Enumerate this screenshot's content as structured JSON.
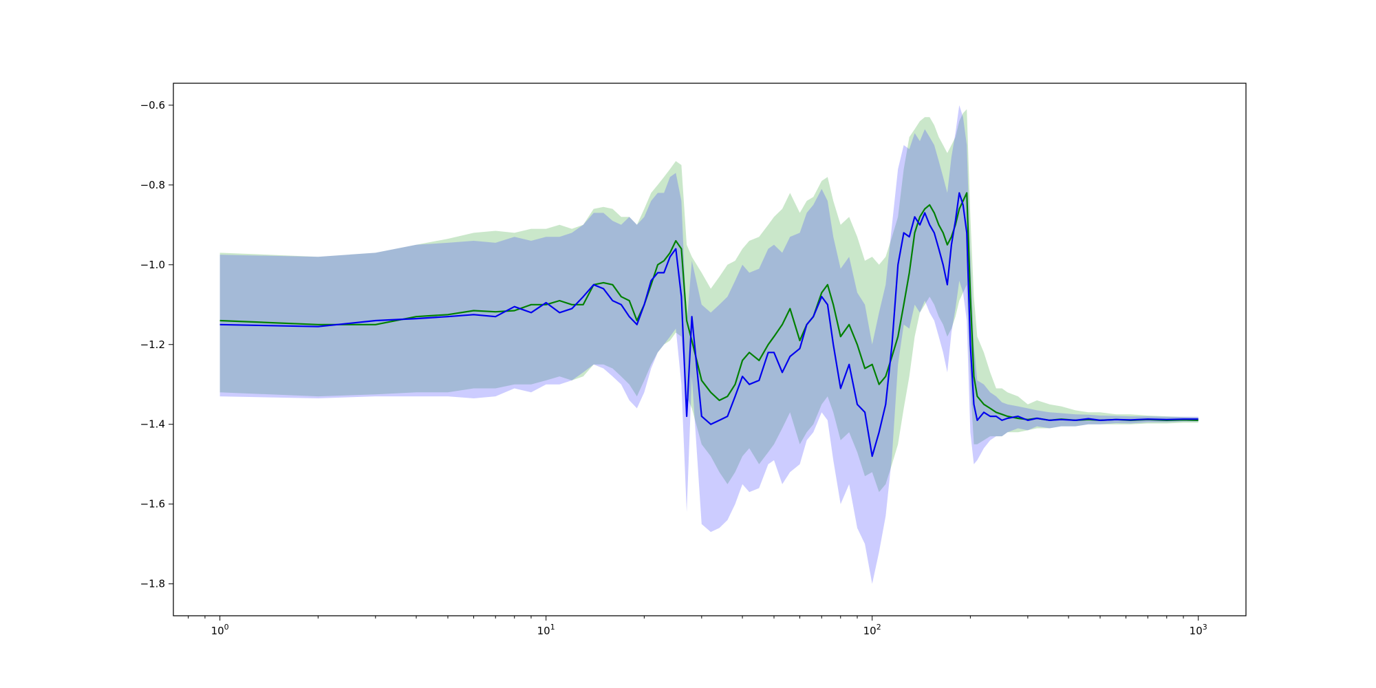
{
  "chart_data": {
    "type": "line",
    "title": "",
    "xlabel": "",
    "ylabel": "",
    "xscale": "log",
    "xlim": [
      0.72,
      1400
    ],
    "ylim": [
      -1.88,
      -0.545
    ],
    "grid": false,
    "legend": "none",
    "x_ticks": [
      {
        "value": 1,
        "base": "10",
        "exp": "0"
      },
      {
        "value": 10,
        "base": "10",
        "exp": "1"
      },
      {
        "value": 100,
        "base": "10",
        "exp": "2"
      },
      {
        "value": 1000,
        "base": "10",
        "exp": "3"
      }
    ],
    "y_ticks": [
      {
        "value": -0.6,
        "label": "−0.6"
      },
      {
        "value": -0.8,
        "label": "−0.8"
      },
      {
        "value": -1.0,
        "label": "−1.0"
      },
      {
        "value": -1.2,
        "label": "−1.2"
      },
      {
        "value": -1.4,
        "label": "−1.4"
      },
      {
        "value": -1.6,
        "label": "−1.6"
      },
      {
        "value": -1.8,
        "label": "−1.8"
      }
    ],
    "series": [
      {
        "color": "#008000",
        "band_color": "#2ca02c",
        "band_opacity": 0.25,
        "x": [
          1,
          2,
          3,
          4,
          5,
          6,
          7,
          8,
          9,
          10,
          11,
          12,
          13,
          14,
          15,
          16,
          17,
          18,
          19,
          20,
          21,
          22,
          23,
          24,
          25,
          26,
          27,
          28,
          30,
          32,
          34,
          36,
          38,
          40,
          42,
          45,
          48,
          50,
          53,
          56,
          60,
          63,
          66,
          70,
          73,
          76,
          80,
          85,
          90,
          95,
          100,
          105,
          110,
          115,
          120,
          125,
          130,
          135,
          140,
          145,
          150,
          155,
          160,
          165,
          170,
          175,
          180,
          185,
          190,
          195,
          200,
          205,
          210,
          220,
          230,
          240,
          250,
          260,
          280,
          300,
          320,
          350,
          380,
          420,
          460,
          500,
          560,
          620,
          700,
          800,
          900,
          1000
        ],
        "y": [
          -1.14,
          -1.15,
          -1.15,
          -1.13,
          -1.125,
          -1.115,
          -1.118,
          -1.115,
          -1.1,
          -1.1,
          -1.09,
          -1.1,
          -1.1,
          -1.05,
          -1.045,
          -1.05,
          -1.08,
          -1.09,
          -1.14,
          -1.1,
          -1.05,
          -1.0,
          -0.99,
          -0.97,
          -0.94,
          -0.96,
          -1.14,
          -1.19,
          -1.29,
          -1.32,
          -1.34,
          -1.33,
          -1.3,
          -1.24,
          -1.22,
          -1.24,
          -1.2,
          -1.18,
          -1.15,
          -1.11,
          -1.19,
          -1.15,
          -1.13,
          -1.07,
          -1.05,
          -1.1,
          -1.18,
          -1.15,
          -1.2,
          -1.26,
          -1.25,
          -1.3,
          -1.28,
          -1.23,
          -1.18,
          -1.1,
          -1.02,
          -0.92,
          -0.88,
          -0.86,
          -0.85,
          -0.87,
          -0.9,
          -0.92,
          -0.95,
          -0.93,
          -0.9,
          -0.86,
          -0.84,
          -0.82,
          -1.08,
          -1.28,
          -1.33,
          -1.35,
          -1.36,
          -1.37,
          -1.375,
          -1.38,
          -1.385,
          -1.388,
          -1.385,
          -1.39,
          -1.387,
          -1.39,
          -1.388,
          -1.39,
          -1.388,
          -1.39,
          -1.388,
          -1.39,
          -1.389,
          -1.39
        ],
        "upper": [
          -0.97,
          -0.98,
          -0.97,
          -0.95,
          -0.935,
          -0.92,
          -0.915,
          -0.92,
          -0.91,
          -0.91,
          -0.9,
          -0.91,
          -0.9,
          -0.86,
          -0.855,
          -0.86,
          -0.88,
          -0.88,
          -0.9,
          -0.86,
          -0.82,
          -0.8,
          -0.78,
          -0.76,
          -0.74,
          -0.75,
          -0.95,
          -0.98,
          -1.02,
          -1.06,
          -1.03,
          -1.0,
          -0.99,
          -0.96,
          -0.94,
          -0.93,
          -0.9,
          -0.88,
          -0.86,
          -0.82,
          -0.87,
          -0.84,
          -0.83,
          -0.79,
          -0.78,
          -0.84,
          -0.9,
          -0.88,
          -0.93,
          -0.99,
          -0.98,
          -1.0,
          -0.98,
          -0.93,
          -0.88,
          -0.76,
          -0.68,
          -0.66,
          -0.64,
          -0.63,
          -0.63,
          -0.65,
          -0.68,
          -0.7,
          -0.72,
          -0.7,
          -0.68,
          -0.64,
          -0.62,
          -0.61,
          -0.88,
          -1.08,
          -1.18,
          -1.22,
          -1.27,
          -1.31,
          -1.31,
          -1.32,
          -1.33,
          -1.35,
          -1.34,
          -1.35,
          -1.355,
          -1.365,
          -1.37,
          -1.37,
          -1.375,
          -1.375,
          -1.378,
          -1.38,
          -1.382,
          -1.383
        ],
        "lower": [
          -1.32,
          -1.33,
          -1.325,
          -1.32,
          -1.32,
          -1.31,
          -1.31,
          -1.3,
          -1.3,
          -1.29,
          -1.28,
          -1.29,
          -1.28,
          -1.25,
          -1.25,
          -1.26,
          -1.28,
          -1.3,
          -1.33,
          -1.29,
          -1.25,
          -1.22,
          -1.2,
          -1.19,
          -1.17,
          -1.18,
          -1.33,
          -1.36,
          -1.45,
          -1.48,
          -1.52,
          -1.55,
          -1.52,
          -1.48,
          -1.46,
          -1.5,
          -1.47,
          -1.45,
          -1.41,
          -1.37,
          -1.45,
          -1.42,
          -1.4,
          -1.35,
          -1.33,
          -1.37,
          -1.44,
          -1.42,
          -1.47,
          -1.53,
          -1.52,
          -1.57,
          -1.55,
          -1.5,
          -1.45,
          -1.36,
          -1.28,
          -1.18,
          -1.12,
          -1.1,
          -1.08,
          -1.1,
          -1.13,
          -1.15,
          -1.18,
          -1.16,
          -1.13,
          -1.09,
          -1.07,
          -1.05,
          -1.3,
          -1.45,
          -1.45,
          -1.44,
          -1.43,
          -1.43,
          -1.43,
          -1.42,
          -1.42,
          -1.415,
          -1.41,
          -1.41,
          -1.405,
          -1.405,
          -1.4,
          -1.4,
          -1.4,
          -1.4,
          -1.398,
          -1.398,
          -1.396,
          -1.396
        ]
      },
      {
        "color": "#0000ee",
        "band_color": "#3333ff",
        "band_opacity": 0.25,
        "x": [
          1,
          2,
          3,
          4,
          5,
          6,
          7,
          8,
          9,
          10,
          11,
          12,
          13,
          14,
          15,
          16,
          17,
          18,
          19,
          20,
          21,
          22,
          23,
          24,
          25,
          26,
          27,
          28,
          30,
          32,
          34,
          36,
          38,
          40,
          42,
          45,
          48,
          50,
          53,
          56,
          60,
          63,
          66,
          70,
          73,
          76,
          80,
          85,
          90,
          95,
          100,
          105,
          110,
          115,
          120,
          125,
          130,
          135,
          140,
          145,
          150,
          155,
          160,
          165,
          170,
          175,
          180,
          185,
          190,
          195,
          200,
          205,
          210,
          220,
          230,
          240,
          250,
          260,
          280,
          300,
          320,
          350,
          380,
          420,
          460,
          500,
          560,
          620,
          700,
          800,
          900,
          1000
        ],
        "y": [
          -1.15,
          -1.155,
          -1.14,
          -1.135,
          -1.13,
          -1.125,
          -1.13,
          -1.105,
          -1.12,
          -1.095,
          -1.12,
          -1.11,
          -1.08,
          -1.05,
          -1.06,
          -1.09,
          -1.1,
          -1.13,
          -1.15,
          -1.1,
          -1.04,
          -1.02,
          -1.02,
          -0.98,
          -0.96,
          -1.08,
          -1.38,
          -1.13,
          -1.38,
          -1.4,
          -1.39,
          -1.38,
          -1.33,
          -1.28,
          -1.3,
          -1.29,
          -1.22,
          -1.22,
          -1.27,
          -1.23,
          -1.21,
          -1.15,
          -1.13,
          -1.08,
          -1.1,
          -1.2,
          -1.31,
          -1.25,
          -1.35,
          -1.37,
          -1.48,
          -1.42,
          -1.35,
          -1.2,
          -1.0,
          -0.92,
          -0.93,
          -0.88,
          -0.9,
          -0.87,
          -0.9,
          -0.92,
          -0.96,
          -1.0,
          -1.05,
          -0.95,
          -0.89,
          -0.82,
          -0.85,
          -0.92,
          -1.2,
          -1.35,
          -1.39,
          -1.37,
          -1.38,
          -1.38,
          -1.39,
          -1.385,
          -1.38,
          -1.39,
          -1.385,
          -1.39,
          -1.388,
          -1.39,
          -1.386,
          -1.39,
          -1.388,
          -1.389,
          -1.387,
          -1.388,
          -1.387,
          -1.387
        ],
        "upper": [
          -0.975,
          -0.98,
          -0.97,
          -0.95,
          -0.945,
          -0.94,
          -0.945,
          -0.93,
          -0.94,
          -0.93,
          -0.93,
          -0.92,
          -0.9,
          -0.87,
          -0.87,
          -0.89,
          -0.9,
          -0.88,
          -0.9,
          -0.88,
          -0.84,
          -0.82,
          -0.82,
          -0.78,
          -0.77,
          -0.84,
          -1.15,
          -0.99,
          -1.1,
          -1.12,
          -1.1,
          -1.08,
          -1.04,
          -1.0,
          -1.02,
          -1.01,
          -0.96,
          -0.95,
          -0.97,
          -0.93,
          -0.92,
          -0.87,
          -0.85,
          -0.81,
          -0.84,
          -0.93,
          -1.01,
          -0.98,
          -1.07,
          -1.1,
          -1.2,
          -1.12,
          -1.05,
          -0.9,
          -0.76,
          -0.7,
          -0.71,
          -0.67,
          -0.69,
          -0.66,
          -0.68,
          -0.7,
          -0.74,
          -0.78,
          -0.82,
          -0.73,
          -0.67,
          -0.6,
          -0.63,
          -0.7,
          -0.98,
          -1.2,
          -1.29,
          -1.3,
          -1.32,
          -1.33,
          -1.345,
          -1.35,
          -1.355,
          -1.36,
          -1.365,
          -1.37,
          -1.372,
          -1.375,
          -1.376,
          -1.378,
          -1.379,
          -1.38,
          -1.38,
          -1.381,
          -1.381,
          -1.381
        ],
        "lower": [
          -1.33,
          -1.335,
          -1.33,
          -1.33,
          -1.33,
          -1.335,
          -1.33,
          -1.31,
          -1.32,
          -1.3,
          -1.3,
          -1.29,
          -1.27,
          -1.25,
          -1.26,
          -1.28,
          -1.3,
          -1.34,
          -1.36,
          -1.32,
          -1.26,
          -1.22,
          -1.2,
          -1.18,
          -1.16,
          -1.3,
          -1.62,
          -1.28,
          -1.65,
          -1.67,
          -1.66,
          -1.64,
          -1.6,
          -1.55,
          -1.57,
          -1.56,
          -1.5,
          -1.49,
          -1.55,
          -1.52,
          -1.5,
          -1.44,
          -1.42,
          -1.37,
          -1.39,
          -1.49,
          -1.6,
          -1.55,
          -1.66,
          -1.7,
          -1.8,
          -1.72,
          -1.63,
          -1.48,
          -1.25,
          -1.15,
          -1.16,
          -1.1,
          -1.12,
          -1.09,
          -1.12,
          -1.14,
          -1.18,
          -1.22,
          -1.27,
          -1.17,
          -1.11,
          -1.04,
          -1.07,
          -1.14,
          -1.42,
          -1.5,
          -1.49,
          -1.46,
          -1.44,
          -1.43,
          -1.43,
          -1.42,
          -1.41,
          -1.415,
          -1.405,
          -1.41,
          -1.405,
          -1.405,
          -1.4,
          -1.4,
          -1.397,
          -1.398,
          -1.395,
          -1.395,
          -1.393,
          -1.393
        ]
      }
    ]
  }
}
